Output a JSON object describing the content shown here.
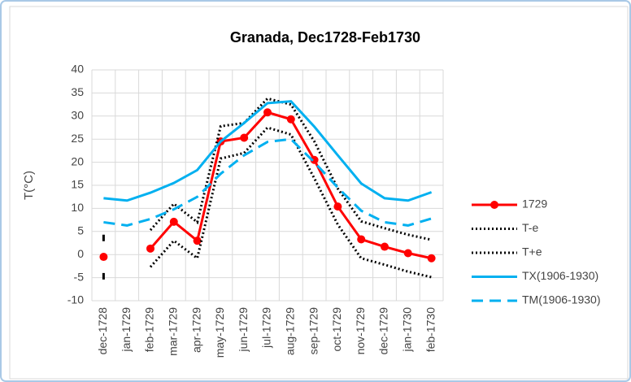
{
  "chart_data": {
    "type": "line",
    "title": "Granada, Dec1728-Feb1730",
    "y_label": "T(°C)",
    "categories": [
      "dec-1728",
      "jan-1729",
      "feb-1729",
      "mar-1729",
      "apr-1729",
      "may-1729",
      "jun-1729",
      "jul-1729",
      "aug-1729",
      "sep-1729",
      "oct-1729",
      "nov-1729",
      "dec-1729",
      "jan-1730",
      "feb-1730"
    ],
    "ylim": [
      -10,
      40
    ],
    "yticks": [
      -10,
      -5,
      0,
      5,
      10,
      15,
      20,
      25,
      30,
      35,
      40
    ],
    "grid": true,
    "legend": "right",
    "series": [
      {
        "name": "1729",
        "color": "#ff0000",
        "style": "solid",
        "marker": true,
        "values": [
          -0.5,
          null,
          1.3,
          7.1,
          3.0,
          24.5,
          25.3,
          30.8,
          29.3,
          20.5,
          10.4,
          3.3,
          1.7,
          0.3,
          -0.8
        ]
      },
      {
        "name": "T-e",
        "color": "#000000",
        "style": "dotted",
        "marker": false,
        "values": [
          -4.7,
          null,
          -2.7,
          3.0,
          -0.8,
          20.8,
          22.0,
          27.5,
          26.0,
          16.5,
          6.5,
          -0.8,
          -2.2,
          -3.7,
          -4.9
        ]
      },
      {
        "name": "T+e",
        "color": "#000000",
        "style": "dotted",
        "marker": false,
        "values": [
          3.6,
          null,
          5.3,
          11.0,
          7.0,
          27.8,
          28.5,
          33.8,
          32.5,
          24.5,
          14.3,
          7.2,
          5.7,
          4.3,
          3.2
        ]
      },
      {
        "name": "TX(1906-1930)",
        "color": "#00b0f0",
        "style": "solid",
        "marker": false,
        "values": [
          12.2,
          11.7,
          13.4,
          15.5,
          18.3,
          24.5,
          28.5,
          32.8,
          33.2,
          27.7,
          21.5,
          15.4,
          12.2,
          11.7,
          13.5
        ]
      },
      {
        "name": "TM(1906-1930)",
        "color": "#00b0f0",
        "style": "dashed",
        "marker": false,
        "values": [
          7.0,
          6.3,
          7.7,
          9.8,
          12.5,
          17.5,
          21.5,
          24.4,
          25.0,
          20.0,
          14.5,
          9.5,
          7.0,
          6.3,
          7.8
        ]
      }
    ]
  }
}
